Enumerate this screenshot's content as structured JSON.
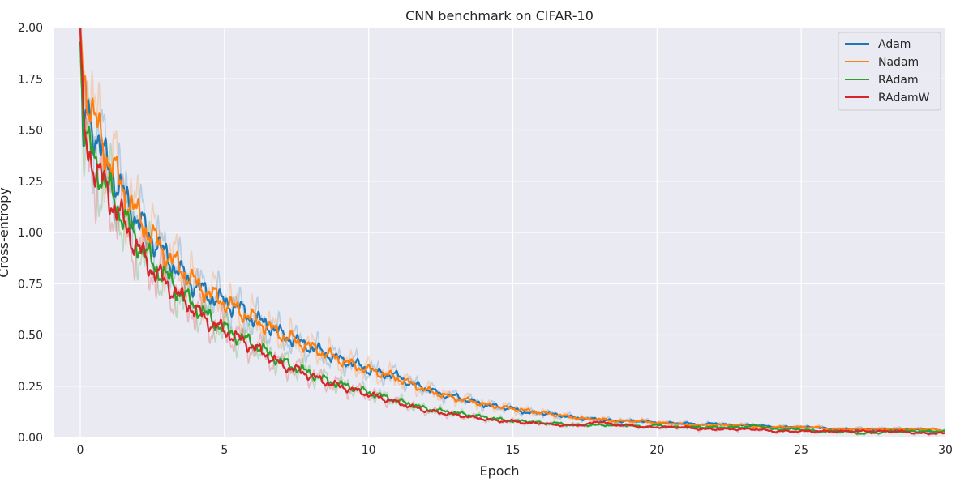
{
  "chart_data": {
    "type": "line",
    "title": "CNN benchmark on CIFAR-10",
    "xlabel": "Epoch",
    "ylabel": "Cross-entropy",
    "xlim": [
      -0.9,
      30
    ],
    "ylim": [
      0,
      2.0
    ],
    "xticks": [
      0,
      5,
      10,
      15,
      20,
      25,
      30
    ],
    "yticks": [
      0.0,
      0.25,
      0.5,
      0.75,
      1.0,
      1.25,
      1.5,
      1.75,
      2.0
    ],
    "xtick_labels": [
      "0",
      "5",
      "10",
      "15",
      "20",
      "25",
      "30"
    ],
    "ytick_labels": [
      "0.00",
      "0.25",
      "0.50",
      "0.75",
      "1.00",
      "1.25",
      "1.50",
      "1.75",
      "2.00"
    ],
    "grid": true,
    "legend_position": "top-right",
    "background": "#eaeaf2",
    "series": [
      {
        "name": "Adam",
        "color": "#1f77b4",
        "x": [
          0,
          0.1,
          0.2,
          0.4,
          0.6,
          0.8,
          1,
          1.5,
          2,
          2.5,
          3,
          3.5,
          4,
          4.5,
          5,
          5.5,
          6,
          6.5,
          7,
          7.5,
          8,
          8.5,
          9,
          9.5,
          10,
          10.5,
          11,
          11.5,
          12,
          12.5,
          13,
          13.5,
          14,
          14.5,
          15,
          15.5,
          16,
          16.5,
          17,
          17.5,
          18,
          18.5,
          19,
          19.5,
          20,
          20.5,
          21,
          21.5,
          22,
          22.5,
          23,
          23.5,
          24,
          24.5,
          25,
          25.5,
          26,
          26.5,
          27,
          27.5,
          28,
          28.5,
          29,
          29.5,
          30
        ],
        "y": [
          2.0,
          1.35,
          1.6,
          1.52,
          1.47,
          1.37,
          1.32,
          1.18,
          1.06,
          0.97,
          0.88,
          0.8,
          0.74,
          0.69,
          0.66,
          0.63,
          0.58,
          0.55,
          0.5,
          0.47,
          0.44,
          0.41,
          0.38,
          0.36,
          0.33,
          0.31,
          0.3,
          0.26,
          0.24,
          0.21,
          0.2,
          0.18,
          0.16,
          0.15,
          0.14,
          0.12,
          0.12,
          0.11,
          0.1,
          0.09,
          0.09,
          0.08,
          0.08,
          0.08,
          0.07,
          0.07,
          0.07,
          0.06,
          0.07,
          0.06,
          0.06,
          0.06,
          0.05,
          0.05,
          0.05,
          0.05,
          0.04,
          0.04,
          0.04,
          0.04,
          0.04,
          0.04,
          0.04,
          0.03,
          0.03
        ]
      },
      {
        "name": "Nadam",
        "color": "#ff7f0e",
        "x": [
          0,
          0.1,
          0.2,
          0.4,
          0.6,
          0.8,
          1,
          1.5,
          2,
          2.5,
          3,
          3.5,
          4,
          4.5,
          5,
          5.5,
          6,
          6.5,
          7,
          7.5,
          8,
          8.5,
          9,
          9.5,
          10,
          10.5,
          11,
          11.5,
          12,
          12.5,
          13,
          13.5,
          14,
          14.5,
          15,
          15.5,
          16,
          16.5,
          17,
          17.5,
          18,
          18.5,
          19,
          19.5,
          20,
          20.5,
          21,
          21.5,
          22,
          22.5,
          23,
          23.5,
          24,
          24.5,
          25,
          25.5,
          26,
          26.5,
          27,
          27.5,
          28,
          28.5,
          29,
          29.5,
          30
        ],
        "y": [
          2.0,
          1.78,
          1.72,
          1.6,
          1.5,
          1.42,
          1.36,
          1.2,
          1.08,
          0.98,
          0.89,
          0.82,
          0.75,
          0.7,
          0.66,
          0.62,
          0.58,
          0.54,
          0.5,
          0.47,
          0.44,
          0.41,
          0.38,
          0.35,
          0.33,
          0.31,
          0.29,
          0.26,
          0.23,
          0.21,
          0.19,
          0.18,
          0.16,
          0.15,
          0.14,
          0.13,
          0.12,
          0.11,
          0.1,
          0.09,
          0.09,
          0.08,
          0.08,
          0.08,
          0.07,
          0.07,
          0.06,
          0.06,
          0.06,
          0.06,
          0.06,
          0.05,
          0.05,
          0.05,
          0.05,
          0.05,
          0.04,
          0.04,
          0.04,
          0.04,
          0.04,
          0.04,
          0.04,
          0.04,
          0.03
        ]
      },
      {
        "name": "RAdam",
        "color": "#2ca02c",
        "x": [
          0,
          0.1,
          0.2,
          0.4,
          0.6,
          0.8,
          1,
          1.5,
          2,
          2.5,
          3,
          3.5,
          4,
          4.5,
          5,
          5.5,
          6,
          6.5,
          7,
          7.5,
          8,
          8.5,
          9,
          9.5,
          10,
          10.5,
          11,
          11.5,
          12,
          12.5,
          13,
          13.5,
          14,
          14.5,
          15,
          15.5,
          16,
          16.5,
          17,
          17.5,
          18,
          18.5,
          19,
          19.5,
          20,
          20.5,
          21,
          21.5,
          22,
          22.5,
          23,
          23.5,
          24,
          24.5,
          25,
          25.5,
          26,
          26.5,
          27,
          27.5,
          28,
          28.5,
          29,
          29.5,
          30
        ],
        "y": [
          2.0,
          1.55,
          1.45,
          1.38,
          1.32,
          1.27,
          1.2,
          1.08,
          0.95,
          0.85,
          0.78,
          0.7,
          0.64,
          0.58,
          0.53,
          0.49,
          0.46,
          0.41,
          0.37,
          0.34,
          0.31,
          0.28,
          0.26,
          0.24,
          0.22,
          0.2,
          0.18,
          0.16,
          0.14,
          0.13,
          0.12,
          0.11,
          0.1,
          0.09,
          0.08,
          0.08,
          0.07,
          0.07,
          0.06,
          0.06,
          0.06,
          0.06,
          0.06,
          0.05,
          0.06,
          0.05,
          0.05,
          0.05,
          0.05,
          0.05,
          0.05,
          0.06,
          0.04,
          0.04,
          0.04,
          0.03,
          0.03,
          0.03,
          0.02,
          0.02,
          0.03,
          0.03,
          0.03,
          0.03,
          0.03
        ]
      },
      {
        "name": "RAdamW",
        "color": "#d62728",
        "x": [
          0,
          0.1,
          0.2,
          0.4,
          0.6,
          0.8,
          1,
          1.5,
          2,
          2.5,
          3,
          3.5,
          4,
          4.5,
          5,
          5.5,
          6,
          6.5,
          7,
          7.5,
          8,
          8.5,
          9,
          9.5,
          10,
          10.5,
          11,
          11.5,
          12,
          12.5,
          13,
          13.5,
          14,
          14.5,
          15,
          15.5,
          16,
          16.5,
          17,
          17.5,
          18,
          18.5,
          19,
          19.5,
          20,
          20.5,
          21,
          21.5,
          22,
          22.5,
          23,
          23.5,
          24,
          24.5,
          25,
          25.5,
          26,
          26.5,
          27,
          27.5,
          28,
          28.5,
          29,
          29.5,
          30
        ],
        "y": [
          2.0,
          1.5,
          1.42,
          1.36,
          1.3,
          1.24,
          1.18,
          1.05,
          0.92,
          0.82,
          0.75,
          0.68,
          0.62,
          0.56,
          0.52,
          0.48,
          0.44,
          0.4,
          0.35,
          0.33,
          0.3,
          0.27,
          0.25,
          0.23,
          0.21,
          0.19,
          0.17,
          0.15,
          0.13,
          0.12,
          0.11,
          0.1,
          0.09,
          0.08,
          0.08,
          0.07,
          0.07,
          0.06,
          0.06,
          0.06,
          0.08,
          0.06,
          0.06,
          0.05,
          0.05,
          0.05,
          0.05,
          0.04,
          0.04,
          0.04,
          0.04,
          0.04,
          0.03,
          0.03,
          0.03,
          0.03,
          0.03,
          0.03,
          0.03,
          0.03,
          0.03,
          0.03,
          0.02,
          0.02,
          0.02
        ]
      }
    ]
  }
}
